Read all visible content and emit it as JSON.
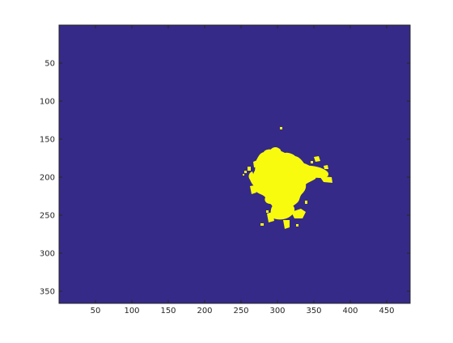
{
  "figure": {
    "background": "#ffffff",
    "image_colormap": {
      "background": "#352a87",
      "foreground": "#f9fb0e"
    },
    "axes": {
      "x_ticks": [
        "50",
        "100",
        "150",
        "200",
        "250",
        "300",
        "350",
        "400",
        "450"
      ],
      "y_ticks": [
        "50",
        "100",
        "150",
        "200",
        "250",
        "300",
        "350"
      ],
      "x_range": [
        0.5,
        482.5
      ],
      "y_range": [
        0.5,
        364.5
      ],
      "y_direction": "reverse",
      "tick_color": "#262626",
      "box_color": "#262626"
    }
  }
}
